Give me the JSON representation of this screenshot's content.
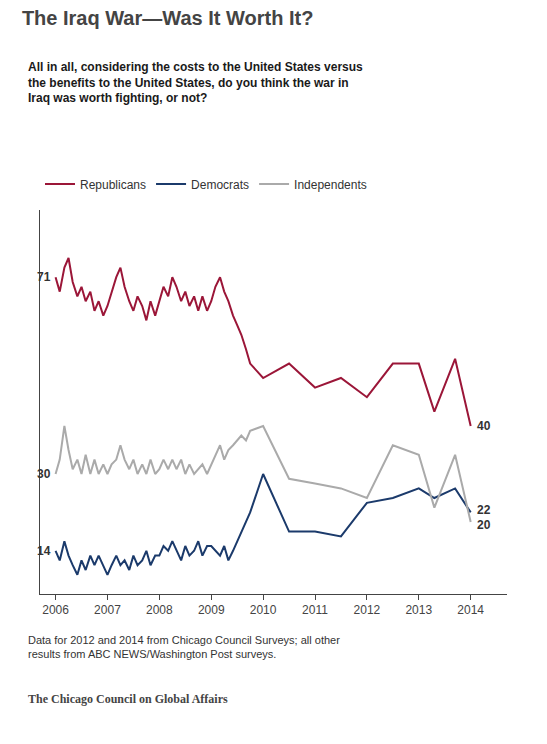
{
  "chart_data": {
    "type": "line",
    "title": "The Iraq War—Was It Worth It?",
    "subtitle": "All in all, considering the costs to the United States versus\nthe benefits to the United States, do you think the war in\nIraq was worth fighting, or not?",
    "footnote": "Data for 2012 and 2014 from Chicago Council Surveys; all other\nresults from ABC NEWS/Washington Post surveys.",
    "source": "The Chicago Council on Global Affairs",
    "x": [
      2006.0,
      2006.08,
      2006.17,
      2006.25,
      2006.33,
      2006.42,
      2006.5,
      2006.58,
      2006.67,
      2006.75,
      2006.83,
      2006.92,
      2007.0,
      2007.08,
      2007.17,
      2007.25,
      2007.33,
      2007.42,
      2007.5,
      2007.58,
      2007.67,
      2007.75,
      2007.83,
      2007.92,
      2008.0,
      2008.08,
      2008.17,
      2008.25,
      2008.33,
      2008.42,
      2008.5,
      2008.58,
      2008.67,
      2008.75,
      2008.83,
      2008.92,
      2009.0,
      2009.08,
      2009.17,
      2009.25,
      2009.33,
      2009.42,
      2009.5,
      2009.58,
      2009.67,
      2009.75,
      2010.0,
      2010.5,
      2011.0,
      2011.5,
      2012.0,
      2012.5,
      2013.0,
      2013.3,
      2013.7,
      2014.0
    ],
    "series": [
      {
        "name": "Republicans",
        "color": "#9b1638",
        "values": [
          71,
          68,
          73,
          75,
          70,
          67,
          69,
          66,
          68,
          64,
          66,
          63,
          65,
          68,
          71,
          73,
          69,
          66,
          64,
          67,
          65,
          62,
          66,
          63,
          66,
          69,
          67,
          71,
          69,
          66,
          68,
          65,
          67,
          64,
          67,
          64,
          66,
          69,
          71,
          68,
          66,
          63,
          61,
          59,
          56,
          53,
          50,
          53,
          48,
          50,
          46,
          53,
          53,
          43,
          54,
          40
        ]
      },
      {
        "name": "Democrats",
        "color": "#1b3a6b",
        "values": [
          14,
          12,
          16,
          13,
          11,
          9,
          12,
          10,
          13,
          11,
          13,
          11,
          9,
          11,
          13,
          11,
          12,
          10,
          13,
          11,
          12,
          14,
          11,
          13,
          13,
          15,
          14,
          16,
          14,
          12,
          15,
          13,
          14,
          16,
          13,
          15,
          15,
          14,
          13,
          15,
          12,
          14,
          16,
          18,
          20,
          22,
          30,
          18,
          18,
          17,
          24,
          25,
          27,
          25,
          27,
          22
        ]
      },
      {
        "name": "Independents",
        "color": "#aaaaaa",
        "values": [
          30,
          33,
          40,
          35,
          31,
          33,
          30,
          34,
          30,
          33,
          30,
          32,
          30,
          32,
          33,
          36,
          33,
          31,
          33,
          30,
          32,
          30,
          33,
          30,
          31,
          33,
          31,
          33,
          31,
          33,
          30,
          32,
          30,
          31,
          32,
          30,
          32,
          34,
          36,
          33,
          35,
          36,
          37,
          38,
          37,
          39,
          40,
          29,
          28,
          27,
          25,
          36,
          34,
          23,
          34,
          20
        ]
      }
    ],
    "annotations": [
      {
        "text": "71",
        "x": 2006.0,
        "y": 71
      },
      {
        "text": "14",
        "x": 2006.0,
        "y": 14
      },
      {
        "text": "30",
        "x": 2006.0,
        "y": 30
      },
      {
        "text": "40",
        "x": 2014.0,
        "y": 40
      },
      {
        "text": "22",
        "x": 2014.0,
        "y": 22
      },
      {
        "text": "20",
        "x": 2014.0,
        "y": 20
      }
    ],
    "xlim": [
      2005.7,
      2014.7
    ],
    "xticks": [
      2006,
      2007,
      2008,
      2009,
      2010,
      2011,
      2012,
      2013,
      2014
    ],
    "ylim": [
      5,
      85
    ],
    "yticks": [],
    "tick_labels": "x",
    "grid": false,
    "legend": "top"
  }
}
